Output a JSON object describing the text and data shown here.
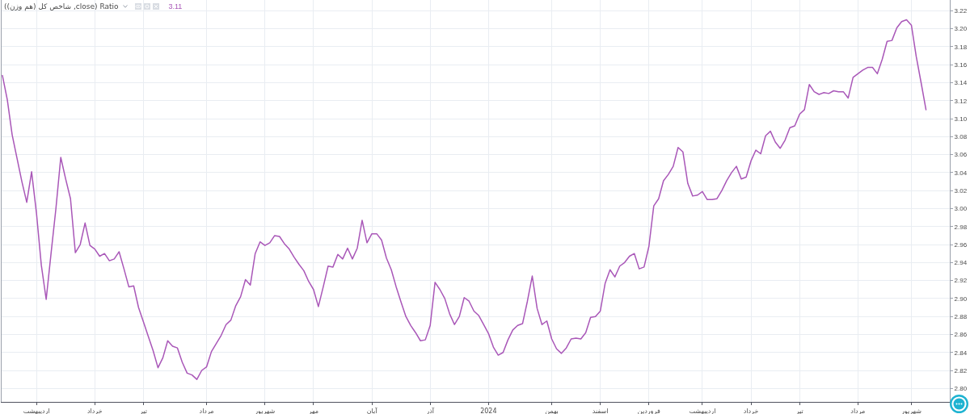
{
  "chart_data": {
    "type": "line",
    "title": "Ratio (close, شاخص کل (هم وزن))",
    "annotations": [
      "3.11"
    ],
    "categories": [
      null,
      null,
      null,
      null,
      null,
      null,
      null,
      "اردیبهشت",
      null,
      null,
      null,
      null,
      null,
      null,
      null,
      null,
      null,
      null,
      null,
      "خرداد",
      null,
      null,
      null,
      null,
      null,
      null,
      null,
      null,
      null,
      "تیر",
      null,
      null,
      null,
      null,
      null,
      null,
      null,
      null,
      null,
      null,
      null,
      null,
      "مرداد",
      null,
      null,
      null,
      null,
      null,
      null,
      null,
      null,
      null,
      null,
      null,
      "شهریور",
      null,
      null,
      null,
      null,
      null,
      null,
      null,
      null,
      null,
      "مهر",
      null,
      null,
      null,
      null,
      null,
      null,
      null,
      null,
      null,
      null,
      null,
      "آبان",
      null,
      null,
      null,
      null,
      null,
      null,
      null,
      null,
      null,
      null,
      null,
      "آذر",
      null,
      null,
      null,
      null,
      null,
      null,
      null,
      null,
      null,
      null,
      null,
      "2024",
      null,
      null,
      null,
      null,
      null,
      null,
      null,
      null,
      null,
      null,
      null,
      null,
      "بهمن",
      null,
      null,
      null,
      null,
      null,
      null,
      null,
      null,
      null,
      "اسفند",
      null,
      null,
      null,
      null,
      null,
      null,
      null,
      null,
      null,
      "فروردین",
      null,
      null,
      null,
      null,
      null,
      null,
      null,
      null,
      null,
      null,
      "اردیبهشت",
      null,
      null,
      null,
      null,
      null,
      null,
      null,
      null,
      null,
      "خرداد",
      null,
      null,
      null,
      null,
      null,
      null,
      null,
      null,
      null,
      "تیر",
      null,
      null,
      null,
      null,
      null,
      null,
      null,
      null,
      null,
      null,
      null,
      "مرداد",
      null,
      null,
      null,
      null,
      null,
      null,
      null,
      null,
      null,
      null,
      "شهریور",
      null,
      null,
      null
    ],
    "series": [
      {
        "color": "#a957b8",
        "values": [
          3.148,
          3.121,
          3.082,
          3.056,
          3.03,
          3.007,
          3.041,
          2.995,
          2.937,
          2.899,
          2.95,
          3.0,
          3.057,
          3.033,
          3.011,
          2.951,
          2.96,
          2.984,
          2.959,
          2.955,
          2.947,
          2.95,
          2.942,
          2.944,
          2.952,
          2.933,
          2.913,
          2.914,
          2.89,
          2.874,
          2.858,
          2.842,
          2.823,
          2.834,
          2.853,
          2.847,
          2.845,
          2.829,
          2.817,
          2.815,
          2.81,
          2.82,
          2.824,
          2.841,
          2.85,
          2.859,
          2.871,
          2.876,
          2.892,
          2.902,
          2.921,
          2.915,
          2.95,
          2.963,
          2.959,
          2.962,
          2.97,
          2.969,
          2.961,
          2.955,
          2.946,
          2.938,
          2.931,
          2.919,
          2.91,
          2.891,
          2.913,
          2.936,
          2.935,
          2.949,
          2.944,
          2.956,
          2.944,
          2.956,
          2.987,
          2.962,
          2.972,
          2.972,
          2.965,
          2.945,
          2.932,
          2.913,
          2.896,
          2.88,
          2.87,
          2.862,
          2.853,
          2.854,
          2.87,
          2.918,
          2.91,
          2.9,
          2.883,
          2.871,
          2.88,
          2.901,
          2.897,
          2.886,
          2.881,
          2.871,
          2.861,
          2.846,
          2.837,
          2.84,
          2.854,
          2.865,
          2.87,
          2.872,
          2.897,
          2.925,
          2.889,
          2.871,
          2.875,
          2.855,
          2.844,
          2.839,
          2.845,
          2.855,
          2.856,
          2.855,
          2.862,
          2.879,
          2.88,
          2.886,
          2.917,
          2.932,
          2.924,
          2.936,
          2.94,
          2.947,
          2.95,
          2.933,
          2.935,
          2.958,
          3.003,
          3.011,
          3.031,
          3.038,
          3.047,
          3.068,
          3.063,
          3.028,
          3.014,
          3.015,
          3.019,
          3.01,
          3.01,
          3.011,
          3.02,
          3.031,
          3.04,
          3.047,
          3.033,
          3.035,
          3.053,
          3.065,
          3.061,
          3.081,
          3.086,
          3.074,
          3.067,
          3.076,
          3.09,
          3.092,
          3.105,
          3.11,
          3.138,
          3.13,
          3.127,
          3.129,
          3.128,
          3.131,
          3.13,
          3.13,
          3.123,
          3.146,
          3.15,
          3.154,
          3.157,
          3.157,
          3.15,
          3.166,
          3.186,
          3.187,
          3.201,
          3.208,
          3.21,
          3.204,
          3.169,
          3.14,
          3.11
        ]
      }
    ],
    "ylim": [
      2.785,
      3.232
    ],
    "yticks": [
      {
        "value": 2.8,
        "label": "2.80"
      },
      {
        "value": 2.82,
        "label": "2.82"
      },
      {
        "value": 2.84,
        "label": "2.84"
      },
      {
        "value": 2.86,
        "label": "2.86"
      },
      {
        "value": 2.88,
        "label": "2.88"
      },
      {
        "value": 2.9,
        "label": "2.90"
      },
      {
        "value": 2.92,
        "label": "2.92"
      },
      {
        "value": 2.94,
        "label": "2.94"
      },
      {
        "value": 2.96,
        "label": "2.96"
      },
      {
        "value": 2.98,
        "label": "2.98"
      },
      {
        "value": 3.0,
        "label": "3.00"
      },
      {
        "value": 3.02,
        "label": "3.02"
      },
      {
        "value": 3.04,
        "label": "3.04"
      },
      {
        "value": 3.06,
        "label": "3.06"
      },
      {
        "value": 3.08,
        "label": "3.08"
      },
      {
        "value": 3.1,
        "label": "3.10"
      },
      {
        "value": 3.12,
        "label": "3.12"
      },
      {
        "value": 3.14,
        "label": "3.14"
      },
      {
        "value": 3.16,
        "label": "3.16"
      },
      {
        "value": 3.18,
        "label": "3.18"
      },
      {
        "value": 3.2,
        "label": "3.20"
      },
      {
        "value": 3.22,
        "label": "3.22"
      }
    ],
    "grid": true,
    "line_style": "solid"
  }
}
